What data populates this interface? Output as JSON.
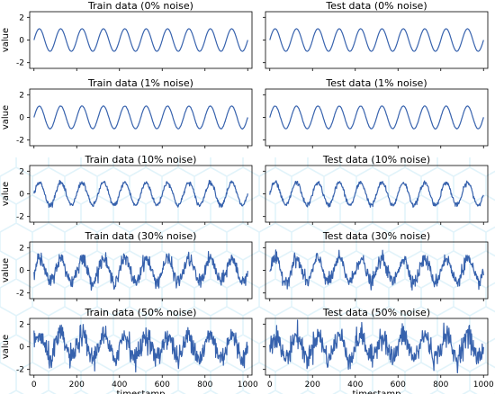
{
  "colors": {
    "series": "#3762ad",
    "frame": "#000000",
    "watermark": "#c9e9f5"
  },
  "watermark": "hexagon-lattice-pattern",
  "chart_data": [
    {
      "type": "line",
      "title": "Train data (0% noise)",
      "ylabel": "value",
      "xlabel": "",
      "noise": 0.0,
      "period": 100,
      "amplitude": 1,
      "x_range": [
        0,
        1000
      ],
      "xlim": [
        -20,
        1020
      ],
      "ylim": [
        -2.5,
        2.5
      ],
      "yticks": [
        -2,
        0,
        2
      ],
      "yticklabels": [
        "-2",
        "0",
        "2"
      ],
      "xticks": [
        0,
        200,
        400,
        600,
        800,
        1000
      ],
      "xticklabels": []
    },
    {
      "type": "line",
      "title": "Test data (0% noise)",
      "ylabel": "",
      "xlabel": "",
      "noise": 0.0,
      "period": 100,
      "amplitude": 1,
      "x_range": [
        0,
        1000
      ],
      "xlim": [
        -20,
        1020
      ],
      "ylim": [
        -2.5,
        2.5
      ],
      "yticks": [
        -2,
        0,
        2
      ],
      "yticklabels": [],
      "xticks": [
        0,
        200,
        400,
        600,
        800,
        1000
      ],
      "xticklabels": []
    },
    {
      "type": "line",
      "title": "Train data (1% noise)",
      "ylabel": "value",
      "xlabel": "",
      "noise": 0.01,
      "period": 100,
      "amplitude": 1,
      "x_range": [
        0,
        1000
      ],
      "xlim": [
        -20,
        1020
      ],
      "ylim": [
        -2.5,
        2.5
      ],
      "yticks": [
        -2,
        0,
        2
      ],
      "yticklabels": [
        "-2",
        "0",
        "2"
      ],
      "xticks": [
        0,
        200,
        400,
        600,
        800,
        1000
      ],
      "xticklabels": []
    },
    {
      "type": "line",
      "title": "Test data (1% noise)",
      "ylabel": "",
      "xlabel": "",
      "noise": 0.01,
      "period": 100,
      "amplitude": 1,
      "x_range": [
        0,
        1000
      ],
      "xlim": [
        -20,
        1020
      ],
      "ylim": [
        -2.5,
        2.5
      ],
      "yticks": [
        -2,
        0,
        2
      ],
      "yticklabels": [],
      "xticks": [
        0,
        200,
        400,
        600,
        800,
        1000
      ],
      "xticklabels": []
    },
    {
      "type": "line",
      "title": "Train data (10% noise)",
      "ylabel": "value",
      "xlabel": "",
      "noise": 0.1,
      "period": 100,
      "amplitude": 1,
      "x_range": [
        0,
        1000
      ],
      "xlim": [
        -20,
        1020
      ],
      "ylim": [
        -2.5,
        2.5
      ],
      "yticks": [
        -2,
        0,
        2
      ],
      "yticklabels": [
        "-2",
        "0",
        "2"
      ],
      "xticks": [
        0,
        200,
        400,
        600,
        800,
        1000
      ],
      "xticklabels": []
    },
    {
      "type": "line",
      "title": "Test data (10% noise)",
      "ylabel": "",
      "xlabel": "",
      "noise": 0.1,
      "period": 100,
      "amplitude": 1,
      "x_range": [
        0,
        1000
      ],
      "xlim": [
        -20,
        1020
      ],
      "ylim": [
        -2.5,
        2.5
      ],
      "yticks": [
        -2,
        0,
        2
      ],
      "yticklabels": [],
      "xticks": [
        0,
        200,
        400,
        600,
        800,
        1000
      ],
      "xticklabels": []
    },
    {
      "type": "line",
      "title": "Train data (30% noise)",
      "ylabel": "value",
      "xlabel": "",
      "noise": 0.3,
      "period": 100,
      "amplitude": 1,
      "x_range": [
        0,
        1000
      ],
      "xlim": [
        -20,
        1020
      ],
      "ylim": [
        -2.5,
        2.5
      ],
      "yticks": [
        -2,
        0,
        2
      ],
      "yticklabels": [
        "-2",
        "0",
        "2"
      ],
      "xticks": [
        0,
        200,
        400,
        600,
        800,
        1000
      ],
      "xticklabels": []
    },
    {
      "type": "line",
      "title": "Test data (30% noise)",
      "ylabel": "",
      "xlabel": "",
      "noise": 0.3,
      "period": 100,
      "amplitude": 1,
      "x_range": [
        0,
        1000
      ],
      "xlim": [
        -20,
        1020
      ],
      "ylim": [
        -2.5,
        2.5
      ],
      "yticks": [
        -2,
        0,
        2
      ],
      "yticklabels": [],
      "xticks": [
        0,
        200,
        400,
        600,
        800,
        1000
      ],
      "xticklabels": []
    },
    {
      "type": "line",
      "title": "Train data (50% noise)",
      "ylabel": "value",
      "xlabel": "timestamp",
      "noise": 0.5,
      "period": 100,
      "amplitude": 1,
      "x_range": [
        0,
        1000
      ],
      "xlim": [
        -20,
        1020
      ],
      "ylim": [
        -2.5,
        2.5
      ],
      "yticks": [
        -2,
        0,
        2
      ],
      "yticklabels": [
        "-2",
        "0",
        "2"
      ],
      "xticks": [
        0,
        200,
        400,
        600,
        800,
        1000
      ],
      "xticklabels": [
        "0",
        "200",
        "400",
        "600",
        "800",
        "1000"
      ]
    },
    {
      "type": "line",
      "title": "Test data (50% noise)",
      "ylabel": "",
      "xlabel": "timestamp",
      "noise": 0.5,
      "period": 100,
      "amplitude": 1,
      "x_range": [
        0,
        1000
      ],
      "xlim": [
        -20,
        1020
      ],
      "ylim": [
        -2.5,
        2.5
      ],
      "yticks": [
        -2,
        0,
        2
      ],
      "yticklabels": [],
      "xticks": [
        0,
        200,
        400,
        600,
        800,
        1000
      ],
      "xticklabels": [
        "0",
        "200",
        "400",
        "600",
        "800",
        "1000"
      ]
    }
  ]
}
